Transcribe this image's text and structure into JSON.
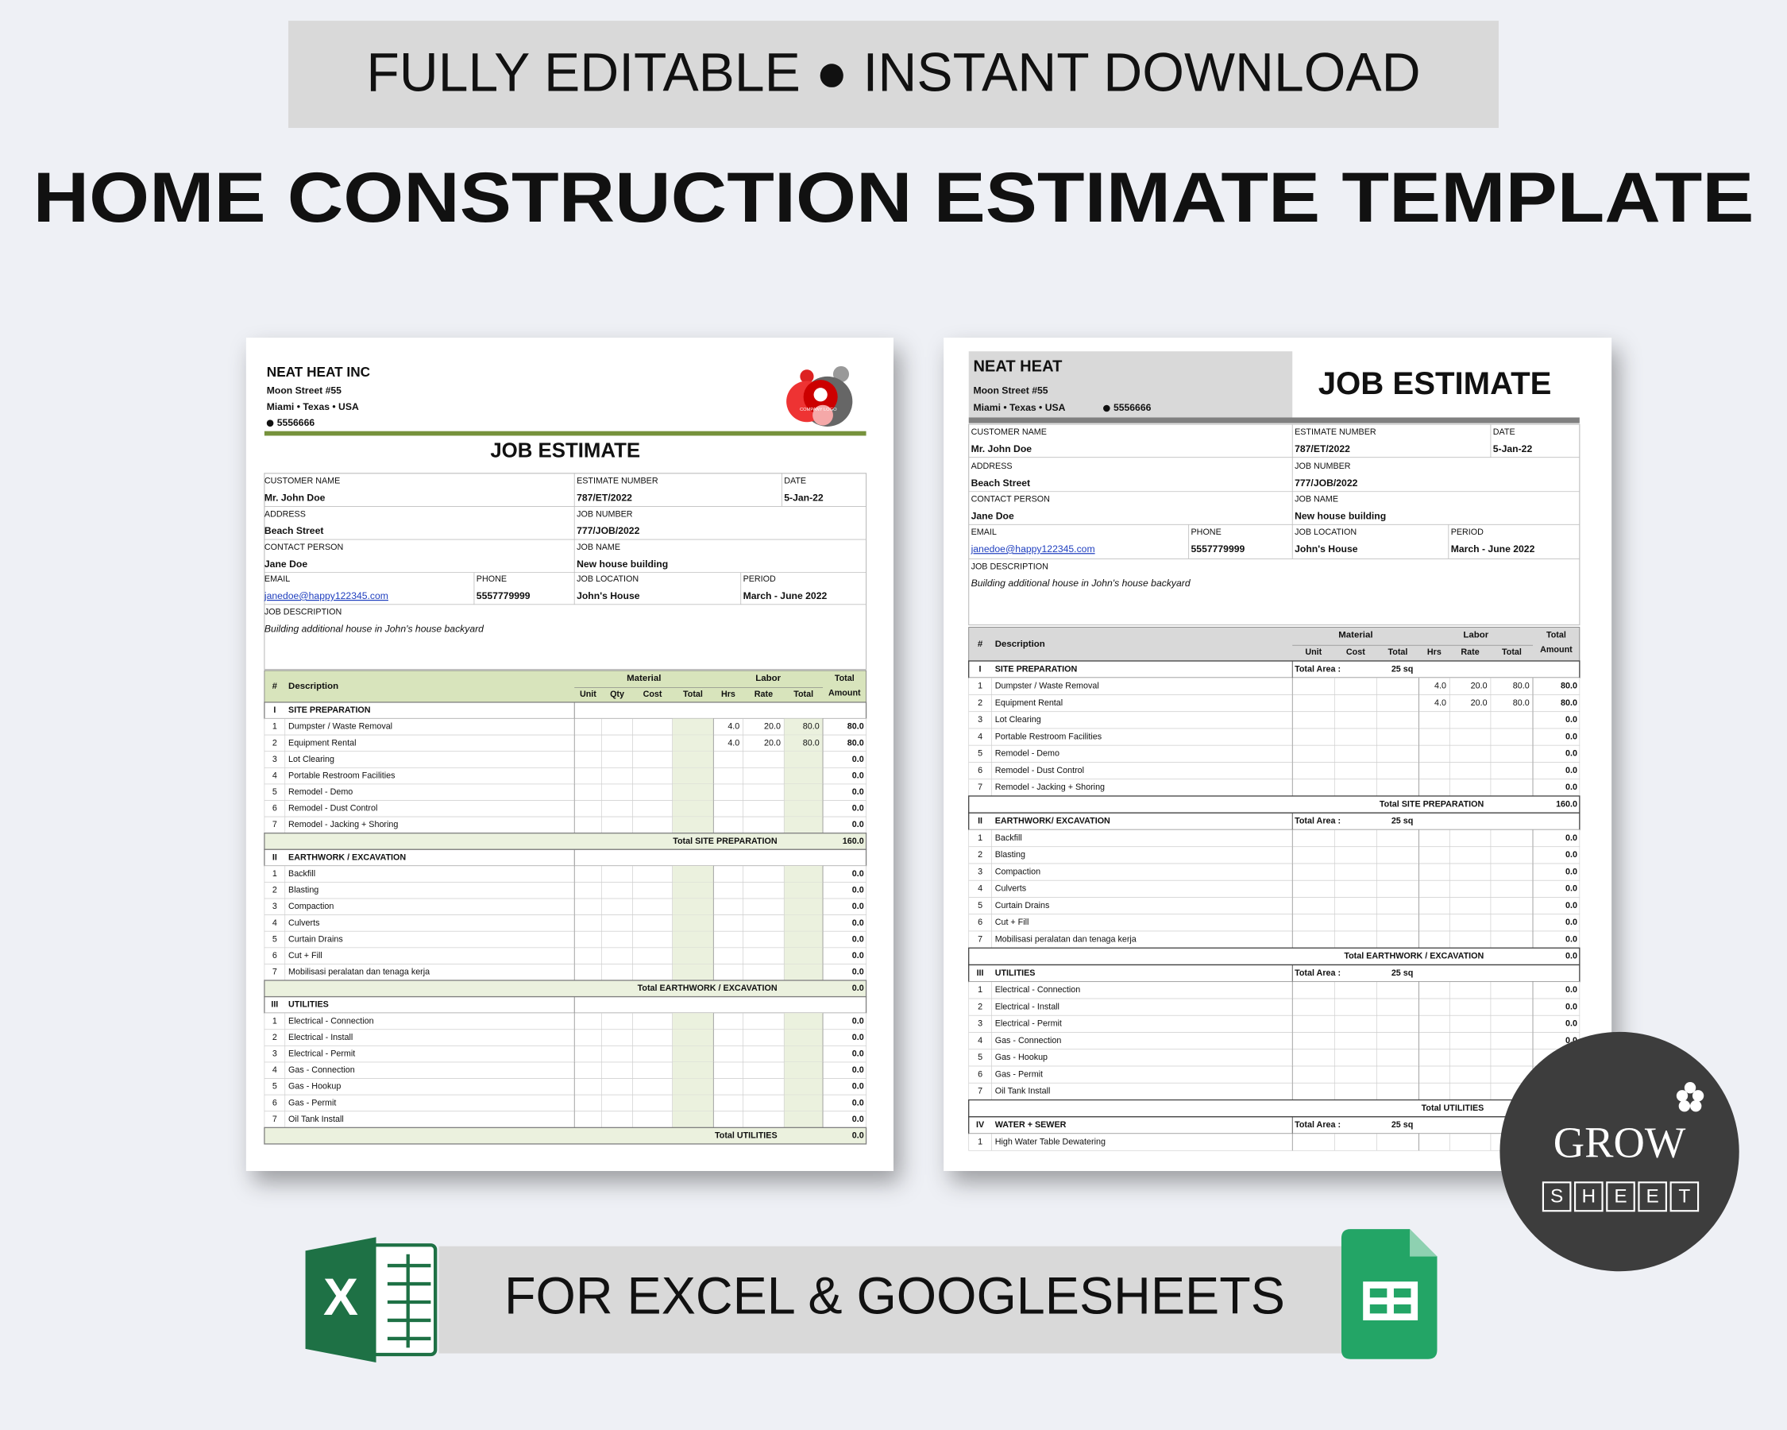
{
  "banner": "FULLY EDITABLE ● INSTANT DOWNLOAD",
  "title": "HOME CONSTRUCTION ESTIMATE TEMPLATE",
  "footer": "FOR EXCEL & GOOGLESHEETS",
  "excel_icon_letter": "X",
  "brand": {
    "name": "GROW",
    "sub": [
      "S",
      "H",
      "E",
      "E",
      "T"
    ]
  },
  "sheets": [
    {
      "company": "NEAT HEAT INC",
      "address": [
        "Moon Street #55",
        "Miami • Texas • USA"
      ],
      "phone": "5556666",
      "logo_text": "COMPANY LOGO",
      "heading": "JOB ESTIMATE",
      "fields": [
        {
          "label": "CUSTOMER NAME",
          "value": "Mr. John Doe"
        },
        {
          "label": "ESTIMATE NUMBER",
          "value": "787/ET/2022"
        },
        {
          "label": "DATE",
          "value": "5-Jan-22"
        },
        {
          "label": "ADDRESS",
          "value": "Beach Street"
        },
        {
          "label": "JOB NUMBER",
          "value": "777/JOB/2022"
        },
        {
          "label": "CONTACT PERSON",
          "value": "Jane Doe"
        },
        {
          "label": "JOB NAME",
          "value": "New house building"
        },
        {
          "label": "EMAIL",
          "value": "janedoe@happy122345.com"
        },
        {
          "label": "PHONE",
          "value": "5557779999"
        },
        {
          "label": "JOB LOCATION",
          "value": "John's House"
        },
        {
          "label": "PERIOD",
          "value": "March - June 2022"
        },
        {
          "label": "JOB DESCRIPTION",
          "value": "Building additional house in John's house backyard"
        }
      ],
      "table": {
        "number": "#",
        "description": "Description",
        "material": "Material",
        "labor": "Labor",
        "total_amount": [
          "Total",
          "Amount"
        ],
        "material_cols": [
          "Unit",
          "Qty",
          "Cost",
          "Total"
        ],
        "labor_cols": [
          "Hrs",
          "Rate",
          "Total"
        ]
      },
      "sections": [
        {
          "number": "I",
          "title": "SITE PREPARATION",
          "items": [
            {
              "n": 1,
              "description": "Dumpster / Waste Removal",
              "hrs": "4.0",
              "rate": "20.0",
              "labor_total": "80.0",
              "amount": "80.0"
            },
            {
              "n": 2,
              "description": "Equipment Rental",
              "hrs": "4.0",
              "rate": "20.0",
              "labor_total": "80.0",
              "amount": "80.0"
            },
            {
              "n": 3,
              "description": "Lot Clearing",
              "amount": "0.0"
            },
            {
              "n": 4,
              "description": "Portable Restroom Facilities",
              "amount": "0.0"
            },
            {
              "n": 5,
              "description": "Remodel - Demo",
              "amount": "0.0"
            },
            {
              "n": 6,
              "description": "Remodel - Dust Control",
              "amount": "0.0"
            },
            {
              "n": 7,
              "description": "Remodel - Jacking + Shoring",
              "amount": "0.0"
            }
          ],
          "total_label": "Total SITE PREPARATION",
          "total": "160.0"
        },
        {
          "number": "II",
          "title": "EARTHWORK / EXCAVATION",
          "items": [
            {
              "n": 1,
              "description": "Backfill",
              "amount": "0.0"
            },
            {
              "n": 2,
              "description": "Blasting",
              "amount": "0.0"
            },
            {
              "n": 3,
              "description": "Compaction",
              "amount": "0.0"
            },
            {
              "n": 4,
              "description": "Culverts",
              "amount": "0.0"
            },
            {
              "n": 5,
              "description": "Curtain Drains",
              "amount": "0.0"
            },
            {
              "n": 6,
              "description": "Cut + Fill",
              "amount": "0.0"
            },
            {
              "n": 7,
              "description": "Mobilisasi peralatan dan tenaga kerja",
              "amount": "0.0"
            }
          ],
          "total_label": "Total EARTHWORK / EXCAVATION",
          "total": "0.0"
        },
        {
          "number": "III",
          "title": "UTILITIES",
          "items": [
            {
              "n": 1,
              "description": "Electrical - Connection",
              "amount": "0.0"
            },
            {
              "n": 2,
              "description": "Electrical - Install",
              "amount": "0.0"
            },
            {
              "n": 3,
              "description": "Electrical - Permit",
              "amount": "0.0"
            },
            {
              "n": 4,
              "description": "Gas - Connection",
              "amount": "0.0"
            },
            {
              "n": 5,
              "description": "Gas - Hookup",
              "amount": "0.0"
            },
            {
              "n": 6,
              "description": "Gas - Permit",
              "amount": "0.0"
            },
            {
              "n": 7,
              "description": "Oil Tank Install",
              "amount": "0.0"
            }
          ],
          "total_label": "Total UTILITIES",
          "total": "0.0"
        }
      ]
    },
    {
      "company": "NEAT HEAT",
      "address": [
        "Moon Street #55",
        "Miami • Texas • USA"
      ],
      "phone": "5556666",
      "heading": "JOB ESTIMATE",
      "fields": [
        {
          "label": "CUSTOMER NAME",
          "value": "Mr. John Doe"
        },
        {
          "label": "ESTIMATE NUMBER",
          "value": "787/ET/2022"
        },
        {
          "label": "DATE",
          "value": "5-Jan-22"
        },
        {
          "label": "ADDRESS",
          "value": "Beach Street"
        },
        {
          "label": "JOB NUMBER",
          "value": "777/JOB/2022"
        },
        {
          "label": "CONTACT PERSON",
          "value": "Jane Doe"
        },
        {
          "label": "JOB NAME",
          "value": "New house building"
        },
        {
          "label": "EMAIL",
          "value": "janedoe@happy122345.com"
        },
        {
          "label": "PHONE",
          "value": "5557779999"
        },
        {
          "label": "JOB LOCATION",
          "value": "John's House"
        },
        {
          "label": "PERIOD",
          "value": "March - June 2022"
        },
        {
          "label": "JOB DESCRIPTION",
          "value": "Building additional house in John's house backyard"
        }
      ],
      "table": {
        "number": "#",
        "description": "Description",
        "material": "Material",
        "labor": "Labor",
        "total_amount": [
          "Total",
          "Amount"
        ],
        "material_cols": [
          "Unit",
          "Cost",
          "Total"
        ],
        "labor_cols": [
          "Hrs",
          "Rate",
          "Total"
        ]
      },
      "sections": [
        {
          "number": "I",
          "title": "SITE PREPARATION",
          "area_label": "Total Area :",
          "area": "25 sq",
          "items": [
            {
              "n": 1,
              "description": "Dumpster / Waste Removal",
              "hrs": "4.0",
              "rate": "20.0",
              "labor_total": "80.0",
              "amount": "80.0"
            },
            {
              "n": 2,
              "description": "Equipment Rental",
              "hrs": "4.0",
              "rate": "20.0",
              "labor_total": "80.0",
              "amount": "80.0"
            },
            {
              "n": 3,
              "description": "Lot Clearing",
              "amount": "0.0"
            },
            {
              "n": 4,
              "description": "Portable Restroom Facilities",
              "amount": "0.0"
            },
            {
              "n": 5,
              "description": "Remodel - Demo",
              "amount": "0.0"
            },
            {
              "n": 6,
              "description": "Remodel - Dust Control",
              "amount": "0.0"
            },
            {
              "n": 7,
              "description": "Remodel - Jacking + Shoring",
              "amount": "0.0"
            }
          ],
          "total_label": "Total SITE PREPARATION",
          "total": "160.0"
        },
        {
          "number": "II",
          "title": "EARTHWORK/ EXCAVATION",
          "area_label": "Total Area :",
          "area": "25 sq",
          "items": [
            {
              "n": 1,
              "description": "Backfill",
              "amount": "0.0"
            },
            {
              "n": 2,
              "description": "Blasting",
              "amount": "0.0"
            },
            {
              "n": 3,
              "description": "Compaction",
              "amount": "0.0"
            },
            {
              "n": 4,
              "description": "Culverts",
              "amount": "0.0"
            },
            {
              "n": 5,
              "description": "Curtain Drains",
              "amount": "0.0"
            },
            {
              "n": 6,
              "description": "Cut + Fill",
              "amount": "0.0"
            },
            {
              "n": 7,
              "description": "Mobilisasi peralatan dan tenaga kerja",
              "amount": "0.0"
            }
          ],
          "total_label": "Total EARTHWORK / EXCAVATION",
          "total": "0.0"
        },
        {
          "number": "III",
          "title": "UTILITIES",
          "area_label": "Total Area :",
          "area": "25 sq",
          "items": [
            {
              "n": 1,
              "description": "Electrical - Connection",
              "amount": "0.0"
            },
            {
              "n": 2,
              "description": "Electrical - Install",
              "amount": "0.0"
            },
            {
              "n": 3,
              "description": "Electrical - Permit",
              "amount": "0.0"
            },
            {
              "n": 4,
              "description": "Gas - Connection",
              "amount": "0.0"
            },
            {
              "n": 5,
              "description": "Gas - Hookup"
            },
            {
              "n": 6,
              "description": "Gas - Permit"
            },
            {
              "n": 7,
              "description": "Oil Tank Install"
            }
          ],
          "total_label": "Total UTILITIES"
        },
        {
          "number": "IV",
          "title": "WATER + SEWER",
          "area_label": "Total Area :",
          "area": "25 sq",
          "items": [
            {
              "n": 1,
              "description": "High Water Table Dewatering"
            }
          ]
        }
      ]
    }
  ]
}
